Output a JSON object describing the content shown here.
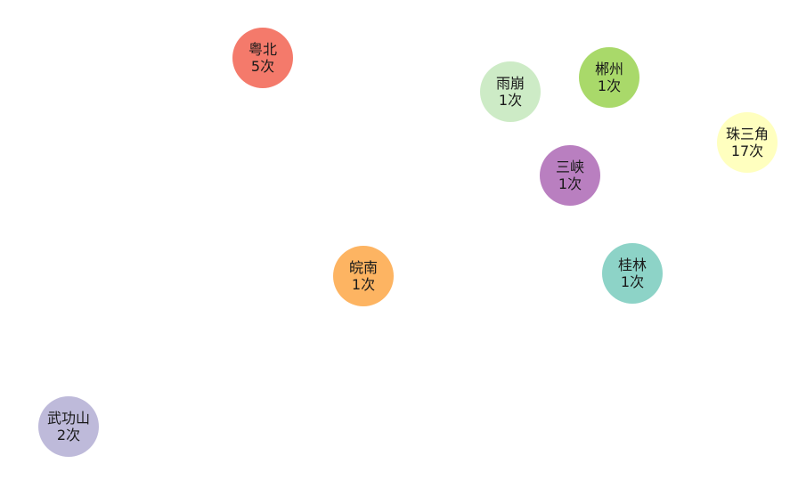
{
  "nodes": [
    {
      "id": "yuebei",
      "name": "粤北",
      "count": "5次",
      "color": "#f47a6b"
    },
    {
      "id": "chenzhou",
      "name": "郴州",
      "count": "1次",
      "color": "#a9d96a"
    },
    {
      "id": "yubeng",
      "name": "雨崩",
      "count": "1次",
      "color": "#cdebc6"
    },
    {
      "id": "zhusanjiao",
      "name": "珠三角",
      "count": "17次",
      "color": "#ffffbf"
    },
    {
      "id": "sanxia",
      "name": "三峡",
      "count": "1次",
      "color": "#b97fc0"
    },
    {
      "id": "guilin",
      "name": "桂林",
      "count": "1次",
      "color": "#8dd3c7"
    },
    {
      "id": "wannan",
      "name": "皖南",
      "count": "1次",
      "color": "#fdb462"
    },
    {
      "id": "wugongshan",
      "name": "武功山",
      "count": "2次",
      "color": "#bebada"
    }
  ]
}
